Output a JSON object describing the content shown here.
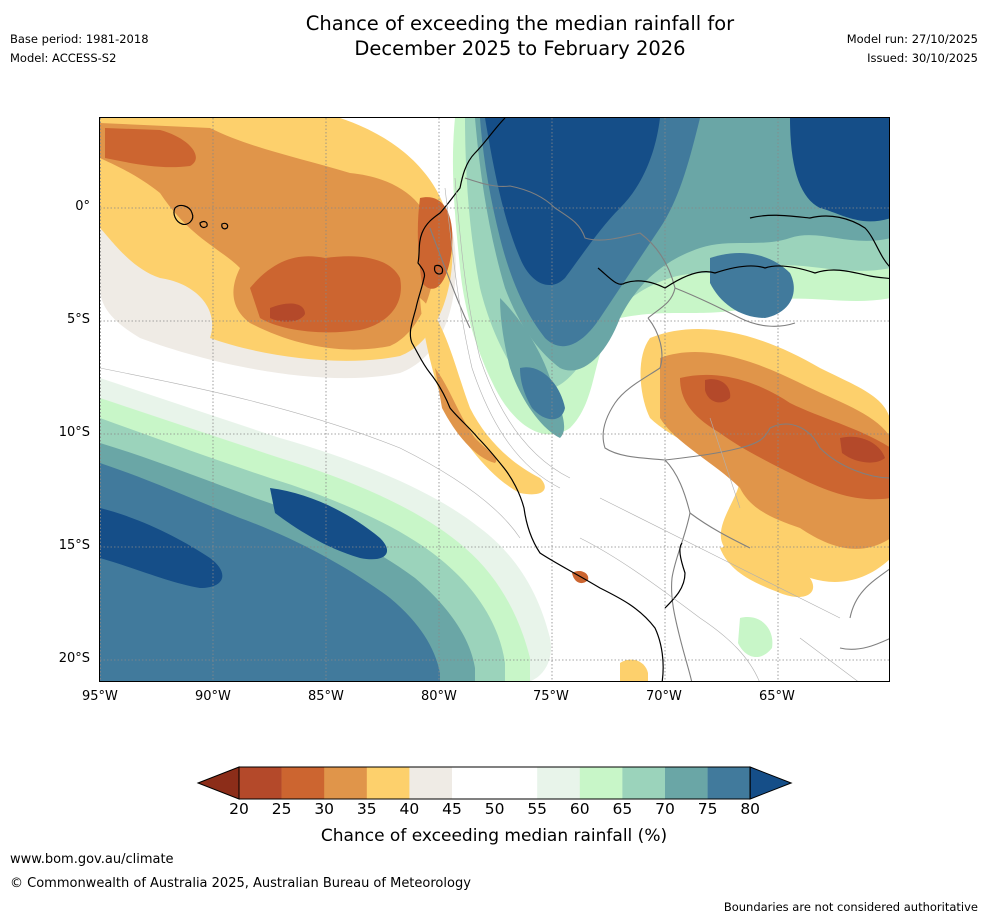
{
  "header": {
    "title_line1": "Chance of exceeding the median rainfall for",
    "title_line2": "December 2025 to February 2026",
    "base_period": "Base period: 1981-2018",
    "model": "Model: ACCESS-S2",
    "model_run": "Model run: 27/10/2025",
    "issued": "Issued: 30/10/2025"
  },
  "map": {
    "lat_labels": [
      "0°",
      "5°S",
      "10°S",
      "15°S",
      "20°S"
    ],
    "lon_labels": [
      "95°W",
      "90°W",
      "85°W",
      "80°W",
      "75°W",
      "70°W",
      "65°W"
    ]
  },
  "colorbar": {
    "colors": [
      "#8c2d19",
      "#b4492a",
      "#cc6530",
      "#e0954a",
      "#fdd06c",
      "#efebe5",
      "#ffffff",
      "#ffffff",
      "#e8f4ea",
      "#c8f6c8",
      "#9bd3bb",
      "#6aa6a6",
      "#417a9c",
      "#154e88"
    ],
    "labels": [
      "20",
      "25",
      "30",
      "35",
      "40",
      "45",
      "50",
      "55",
      "60",
      "65",
      "70",
      "75",
      "80"
    ],
    "title": "Chance of exceeding median rainfall (%)"
  },
  "footer": {
    "website": "www.bom.gov.au/climate",
    "copyright": "© Commonwealth of Australia 2025, Australian Bureau of Meteorology",
    "disclaimer": "Boundaries are not considered authoritative"
  }
}
